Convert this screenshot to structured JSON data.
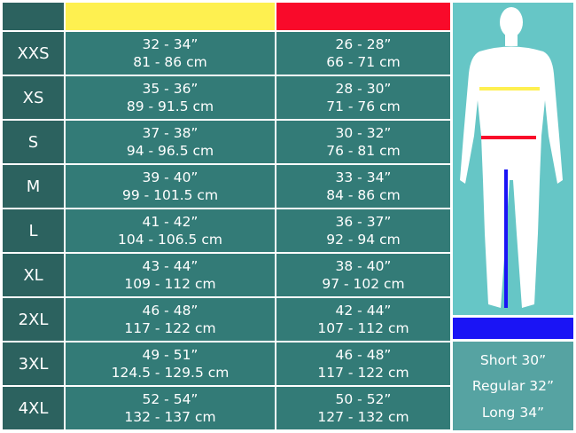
{
  "colors": {
    "chest": "#fef050",
    "waist": "#f90a2a",
    "inseam": "#1a14f5"
  },
  "rows": [
    {
      "size": "XXS",
      "chest_in": "32 - 34”",
      "chest_cm": "81 - 86 cm",
      "waist_in": "26 - 28”",
      "waist_cm": "66 - 71 cm"
    },
    {
      "size": "XS",
      "chest_in": "35 - 36”",
      "chest_cm": "89 - 91.5 cm",
      "waist_in": "28 - 30”",
      "waist_cm": "71 - 76 cm"
    },
    {
      "size": "S",
      "chest_in": "37 - 38”",
      "chest_cm": "94 - 96.5 cm",
      "waist_in": "30 - 32”",
      "waist_cm": "76 - 81 cm"
    },
    {
      "size": "M",
      "chest_in": "39 - 40”",
      "chest_cm": "99 - 101.5 cm",
      "waist_in": "33 - 34”",
      "waist_cm": "84 - 86 cm"
    },
    {
      "size": "L",
      "chest_in": "41 - 42”",
      "chest_cm": "104 - 106.5 cm",
      "waist_in": "36 - 37”",
      "waist_cm": "92 - 94 cm"
    },
    {
      "size": "XL",
      "chest_in": "43 - 44”",
      "chest_cm": "109 - 112 cm",
      "waist_in": "38 - 40”",
      "waist_cm": "97 - 102 cm"
    },
    {
      "size": "2XL",
      "chest_in": "46 - 48”",
      "chest_cm": "117 - 122 cm",
      "waist_in": "42 - 44”",
      "waist_cm": "107 - 112 cm"
    },
    {
      "size": "3XL",
      "chest_in": "49 - 51”",
      "chest_cm": "124.5 - 129.5 cm",
      "waist_in": "46 - 48”",
      "waist_cm": "117 - 122 cm"
    },
    {
      "size": "4XL",
      "chest_in": "52 - 54”",
      "chest_cm": "132 - 137 cm",
      "waist_in": "50 - 52”",
      "waist_cm": "127 - 132 cm"
    }
  ],
  "lengths": [
    "Short 30”",
    "Regular 32”",
    "Long 34”"
  ]
}
